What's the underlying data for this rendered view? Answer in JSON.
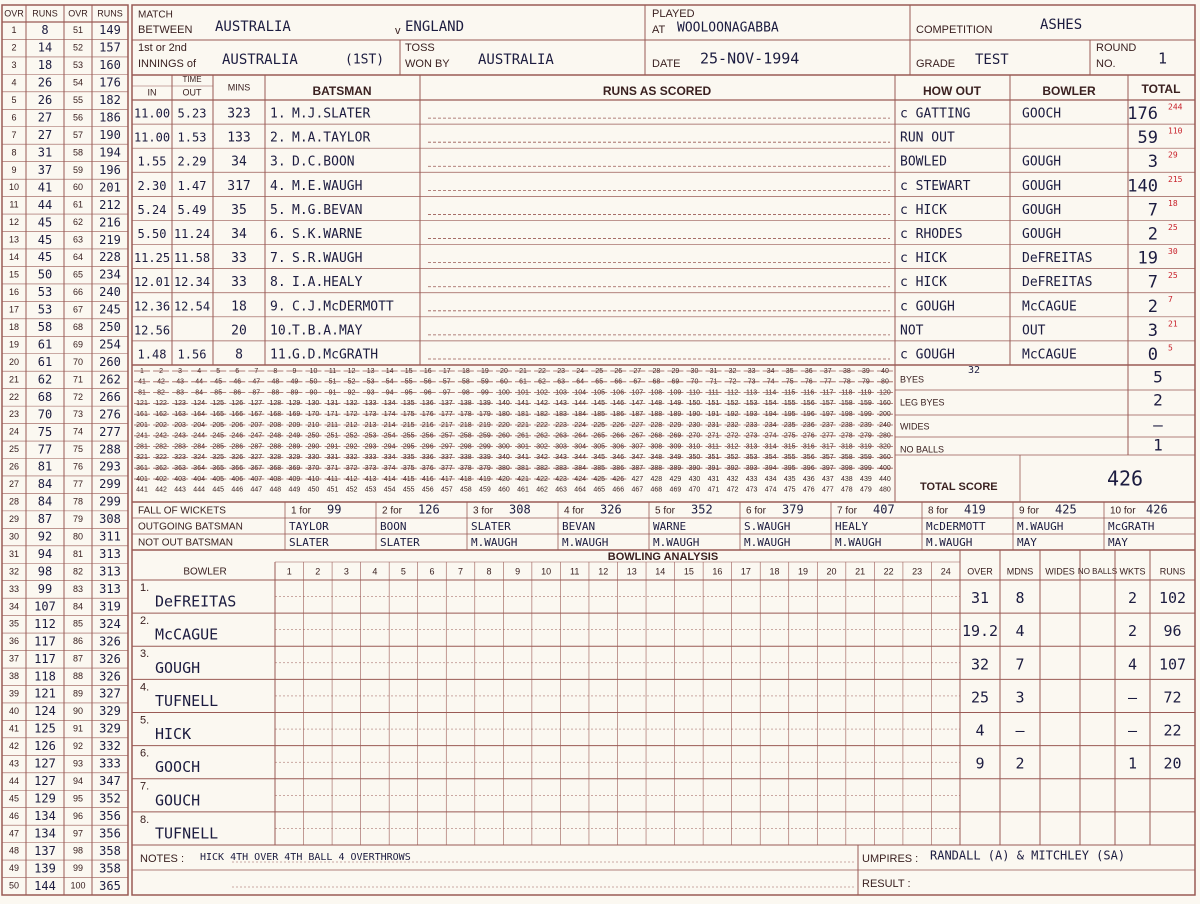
{
  "over_table": {
    "headers": [
      "OVR",
      "RUNS",
      "OVR",
      "RUNS"
    ],
    "rows": [
      [
        "1",
        "8",
        "51",
        "149"
      ],
      [
        "2",
        "14",
        "52",
        "157"
      ],
      [
        "3",
        "18",
        "53",
        "160"
      ],
      [
        "4",
        "26",
        "54",
        "176"
      ],
      [
        "5",
        "26",
        "55",
        "182"
      ],
      [
        "6",
        "27",
        "56",
        "186"
      ],
      [
        "7",
        "27",
        "57",
        "190"
      ],
      [
        "8",
        "31",
        "58",
        "194"
      ],
      [
        "9",
        "37",
        "59",
        "196"
      ],
      [
        "10",
        "41",
        "60",
        "201"
      ],
      [
        "11",
        "44",
        "61",
        "212"
      ],
      [
        "12",
        "45",
        "62",
        "216"
      ],
      [
        "13",
        "45",
        "63",
        "219"
      ],
      [
        "14",
        "45",
        "64",
        "228"
      ],
      [
        "15",
        "50",
        "65",
        "234"
      ],
      [
        "16",
        "53",
        "66",
        "240"
      ],
      [
        "17",
        "53",
        "67",
        "245"
      ],
      [
        "18",
        "58",
        "68",
        "250"
      ],
      [
        "19",
        "61",
        "69",
        "254"
      ],
      [
        "20",
        "61",
        "70",
        "260"
      ],
      [
        "21",
        "62",
        "71",
        "262"
      ],
      [
        "22",
        "68",
        "72",
        "266"
      ],
      [
        "23",
        "70",
        "73",
        "276"
      ],
      [
        "24",
        "75",
        "74",
        "277"
      ],
      [
        "25",
        "77",
        "75",
        "288"
      ],
      [
        "26",
        "81",
        "76",
        "293"
      ],
      [
        "27",
        "84",
        "77",
        "299"
      ],
      [
        "28",
        "84",
        "78",
        "299"
      ],
      [
        "29",
        "87",
        "79",
        "308"
      ],
      [
        "30",
        "92",
        "80",
        "311"
      ],
      [
        "31",
        "94",
        "81",
        "313"
      ],
      [
        "32",
        "98",
        "82",
        "313"
      ],
      [
        "33",
        "99",
        "83",
        "313"
      ],
      [
        "34",
        "107",
        "84",
        "319"
      ],
      [
        "35",
        "112",
        "85",
        "324"
      ],
      [
        "36",
        "117",
        "86",
        "326"
      ],
      [
        "37",
        "117",
        "87",
        "326"
      ],
      [
        "38",
        "118",
        "88",
        "326"
      ],
      [
        "39",
        "121",
        "89",
        "327"
      ],
      [
        "40",
        "124",
        "90",
        "329"
      ],
      [
        "41",
        "125",
        "91",
        "329"
      ],
      [
        "42",
        "126",
        "92",
        "332"
      ],
      [
        "43",
        "127",
        "93",
        "333"
      ],
      [
        "44",
        "127",
        "94",
        "347"
      ],
      [
        "45",
        "129",
        "95",
        "352"
      ],
      [
        "46",
        "134",
        "96",
        "356"
      ],
      [
        "47",
        "134",
        "97",
        "356"
      ],
      [
        "48",
        "137",
        "98",
        "358"
      ],
      [
        "49",
        "139",
        "99",
        "358"
      ],
      [
        "50",
        "144",
        "100",
        "365"
      ]
    ]
  },
  "header": {
    "match_label": [
      "MATCH",
      "BETWEEN"
    ],
    "team1": "AUSTRALIA",
    "v": "v",
    "team2": "ENGLAND",
    "played_label": [
      "PLAYED",
      "AT"
    ],
    "venue": "WOOLOONAGABBA",
    "competition_label": "COMPETITION",
    "competition": "ASHES",
    "innings_label": [
      "1st or 2nd",
      "INNINGS of"
    ],
    "innings": "AUSTRALIA",
    "innings_no": "(1ST)",
    "toss_label": [
      "TOSS",
      "WON BY"
    ],
    "toss": "AUSTRALIA",
    "date_label": "DATE",
    "date": "25-NOV-1994",
    "grade_label": "GRADE",
    "grade": "TEST",
    "round_label": [
      "ROUND",
      "NO."
    ],
    "round": "1"
  },
  "batting": {
    "columns": {
      "time": "TIME",
      "in": "IN",
      "out": "OUT",
      "mins": "MINS",
      "batsman": "BATSMAN",
      "runs_as_scored": "RUNS AS SCORED",
      "how_out": "HOW OUT",
      "bowler": "BOWLER",
      "total": "TOTAL"
    },
    "rows": [
      {
        "in": "11.00",
        "out": "5.23",
        "mins": "323",
        "no": "1.",
        "name": "M.J.SLATER",
        "how_out": "c GATTING",
        "bowler": "GOOCH",
        "total": "176",
        "balls": "244"
      },
      {
        "in": "11.00",
        "out": "1.53",
        "mins": "133",
        "no": "2.",
        "name": "M.A.TAYLOR",
        "how_out": "RUN OUT",
        "total": "59",
        "balls": "110"
      },
      {
        "in": "1.55",
        "out": "2.29",
        "mins": "34",
        "no": "3.",
        "name": "D.C.BOON",
        "how_out": "BOWLED",
        "bowler": "GOUGH",
        "total": "3",
        "balls": "29"
      },
      {
        "in": "2.30",
        "out": "1.47",
        "mins": "317",
        "no": "4.",
        "name": "M.E.WAUGH",
        "how_out": "c STEWART",
        "bowler": "GOUGH",
        "total": "140",
        "balls": "215"
      },
      {
        "in": "5.24",
        "out": "5.49",
        "mins": "35",
        "no": "5.",
        "name": "M.G.BEVAN",
        "how_out": "c HICK",
        "bowler": "GOUGH",
        "total": "7",
        "balls": "18"
      },
      {
        "in": "5.50",
        "out": "11.24",
        "mins": "34",
        "no": "6.",
        "name": "S.K.WARNE",
        "how_out": "c RHODES",
        "bowler": "GOUGH",
        "total": "2",
        "balls": "25"
      },
      {
        "in": "11.25",
        "out": "11.58",
        "mins": "33",
        "no": "7.",
        "name": "S.R.WAUGH",
        "how_out": "c HICK",
        "bowler": "DeFREITAS",
        "total": "19",
        "balls": "30"
      },
      {
        "in": "12.01",
        "out": "12.34",
        "mins": "33",
        "no": "8.",
        "name": "I.A.HEALY",
        "how_out": "c HICK",
        "bowler": "DeFREITAS",
        "total": "7",
        "balls": "25"
      },
      {
        "in": "12.36",
        "out": "12.54",
        "mins": "18",
        "no": "9.",
        "name": "C.J.McDERMOTT",
        "how_out": "c GOUGH",
        "bowler": "McCAGUE",
        "total": "2",
        "balls": "7"
      },
      {
        "in": "12.56",
        "mins": "20",
        "no": "10.",
        "name": "T.B.A.MAY",
        "how_out": "NOT",
        "bowler": "OUT",
        "total": "3",
        "balls": "21"
      },
      {
        "in": "1.48",
        "out": "1.56",
        "mins": "8",
        "no": "11.",
        "name": "G.D.McGRATH",
        "how_out": "c GOUGH",
        "bowler": "McCAGUE",
        "total": "0",
        "balls": "5"
      }
    ]
  },
  "tally": [
    1,
    2,
    3,
    4,
    5,
    6,
    7,
    8,
    9,
    10,
    11,
    12,
    13,
    14,
    15,
    16,
    17,
    18,
    19,
    20,
    21,
    22,
    23,
    24,
    25,
    26,
    27,
    28,
    29,
    30,
    31,
    32,
    33,
    34,
    35,
    36,
    37,
    38,
    39,
    40,
    41,
    42,
    43,
    44,
    45,
    46,
    47,
    48,
    49,
    50,
    51,
    52,
    53,
    54,
    55,
    56,
    57,
    58,
    59,
    60,
    61,
    62,
    63,
    64,
    65,
    66,
    67,
    68,
    69,
    70,
    71,
    72,
    73,
    74,
    75,
    76,
    77,
    78,
    79,
    80,
    81,
    82,
    83,
    84,
    85,
    86,
    87,
    88,
    89,
    90,
    91,
    92,
    93,
    94,
    95,
    96,
    97,
    98,
    99,
    100,
    101,
    102,
    103,
    104,
    105,
    106,
    107,
    108,
    109,
    110,
    111,
    112,
    113,
    114,
    115,
    116,
    117,
    118,
    119,
    120,
    121,
    122,
    123,
    124,
    125,
    126,
    127,
    128,
    129,
    130,
    131,
    132,
    133,
    134,
    135,
    136,
    137,
    138,
    139,
    140,
    141,
    142,
    143,
    144,
    145,
    146,
    147,
    148,
    149,
    150,
    151,
    152,
    153,
    154,
    155,
    156,
    157,
    158,
    159,
    160,
    161,
    162,
    163,
    164,
    165,
    166,
    167,
    168,
    169,
    170,
    171,
    172,
    173,
    174,
    175,
    176,
    177,
    178,
    179,
    180,
    181,
    182,
    183,
    184,
    185,
    186,
    187,
    188,
    189,
    190,
    191,
    192,
    193,
    194,
    195,
    196,
    197,
    198,
    199,
    200,
    201,
    202,
    203,
    204,
    205,
    206,
    207,
    208,
    209,
    210,
    211,
    212,
    213,
    214,
    215,
    216,
    217,
    218,
    219,
    220,
    221,
    222,
    223,
    224,
    225,
    226,
    227,
    228,
    229,
    230,
    231,
    232,
    233,
    234,
    235,
    236,
    237,
    238,
    239,
    240,
    241,
    242,
    243,
    244,
    245,
    246,
    247,
    248,
    249,
    250,
    251,
    252,
    253,
    254,
    255,
    256,
    257,
    258,
    259,
    260,
    261,
    262,
    263,
    264,
    265,
    266,
    267,
    268,
    269,
    270,
    271,
    272,
    273,
    274,
    275,
    276,
    277,
    278,
    279,
    280,
    281,
    282,
    283,
    284,
    285,
    286,
    287,
    288,
    289,
    290,
    291,
    292,
    293,
    294,
    295,
    296,
    297,
    298,
    299,
    300,
    301,
    302,
    303,
    304,
    305,
    306,
    307,
    308,
    309,
    310,
    311,
    312,
    313,
    314,
    315,
    316,
    317,
    318,
    319,
    320,
    321,
    322,
    323,
    324,
    325,
    326,
    327,
    328,
    329,
    330,
    331,
    332,
    333,
    334,
    335,
    336,
    337,
    338,
    339,
    340,
    341,
    342,
    343,
    344,
    345,
    346,
    347,
    348,
    349,
    350,
    351,
    352,
    353,
    354,
    355,
    356,
    357,
    358,
    359,
    360,
    361,
    362,
    363,
    364,
    365,
    366,
    367,
    368,
    369,
    370,
    371,
    372,
    373,
    374,
    375,
    376,
    377,
    378,
    379,
    380,
    381,
    382,
    383,
    384,
    385,
    386,
    387,
    388,
    389,
    390,
    391,
    392,
    393,
    394,
    395,
    396,
    397,
    398,
    399,
    400,
    401,
    402,
    403,
    404,
    405,
    406,
    407,
    408,
    409,
    410,
    411,
    412,
    413,
    414,
    415,
    416,
    417,
    418,
    419,
    420,
    421,
    422,
    423,
    424,
    425,
    426,
    427,
    428,
    429,
    430,
    431,
    432,
    433,
    434,
    435,
    436,
    437,
    438,
    439,
    440,
    441,
    442,
    443,
    444,
    445,
    446,
    447,
    448,
    449,
    450,
    451,
    452,
    453,
    454,
    455,
    456,
    457,
    458,
    459,
    460,
    461,
    462,
    463,
    464,
    465,
    466,
    467,
    468,
    469,
    470,
    471,
    472,
    473,
    474,
    475,
    476,
    477,
    478,
    479,
    480
  ],
  "extras": {
    "byes_label": "BYES",
    "byes_note": "32",
    "byes": "5",
    "leg_byes_label": "LEG BYES",
    "leg_byes": "2",
    "wides_label": "WIDES",
    "wides": "–",
    "no_balls_label": "NO BALLS",
    "no_balls": "1",
    "total_label": "TOTAL SCORE",
    "total": 426
  },
  "fall_of_wickets": {
    "label": "FALL OF WICKETS",
    "outgoing_label": "OUTGOING BATSMAN",
    "not_out_label": "NOT OUT BATSMAN",
    "wickets": [
      {
        "label": "1 for",
        "score": "99",
        "out": "TAYLOR",
        "not_out": "SLATER"
      },
      {
        "label": "2 for",
        "score": "126",
        "out": "BOON",
        "not_out": "SLATER"
      },
      {
        "label": "3 for",
        "score": "308",
        "out": "SLATER",
        "not_out": "M.WAUGH"
      },
      {
        "label": "4 for",
        "score": "326",
        "out": "BEVAN",
        "not_out": "M.WAUGH"
      },
      {
        "label": "5 for",
        "score": "352",
        "out": "WARNE",
        "not_out": "M.WAUGH"
      },
      {
        "label": "6 for",
        "score": "379",
        "out": "S.WAUGH",
        "not_out": "M.WAUGH"
      },
      {
        "label": "7 for",
        "score": "407",
        "out": "HEALY",
        "not_out": "M.WAUGH"
      },
      {
        "label": "8 for",
        "score": "419",
        "out": "McDERMOTT",
        "not_out": "M.WAUGH"
      },
      {
        "label": "9 for",
        "score": "425",
        "out": "M.WAUGH",
        "not_out": "MAY"
      },
      {
        "label": "10 for",
        "score": "426",
        "out": "McGRATH",
        "not_out": "MAY"
      }
    ]
  },
  "bowling": {
    "title": "BOWLING ANALYSIS",
    "columns": {
      "bowler": "BOWLER",
      "overs": [
        "1",
        "2",
        "3",
        "4",
        "5",
        "6",
        "7",
        "8",
        "9",
        "10",
        "11",
        "12",
        "13",
        "14",
        "15",
        "16",
        "17",
        "18",
        "19",
        "20",
        "21",
        "22",
        "23",
        "24"
      ],
      "over": "OVER",
      "mdns": "MDNS",
      "wides": "WIDES",
      "no_balls": "NO BALLS",
      "wkts": "WKTS",
      "runs": "RUNS"
    },
    "rows": [
      {
        "no": "1.",
        "name": "DeFREITAS",
        "over": "31",
        "mdns": "8",
        "wkts": "2",
        "runs": "102"
      },
      {
        "no": "2.",
        "name": "McCAGUE",
        "over": "19.2",
        "mdns": "4",
        "wkts": "2",
        "runs": "96"
      },
      {
        "no": "3.",
        "name": "GOUGH",
        "over": "32",
        "mdns": "7",
        "wkts": "4",
        "runs": "107"
      },
      {
        "no": "4.",
        "name": "TUFNELL",
        "over": "25",
        "mdns": "3",
        "wkts": "–",
        "runs": "72"
      },
      {
        "no": "5.",
        "name": "HICK",
        "over": "4",
        "mdns": "–",
        "wkts": "–",
        "runs": "22"
      },
      {
        "no": "6.",
        "name": "GOOCH",
        "over": "9",
        "mdns": "2",
        "wkts": "1",
        "runs": "20"
      },
      {
        "no": "7.",
        "name": "GOUCH"
      },
      {
        "no": "8.",
        "name": "TUFNELL"
      }
    ]
  },
  "notes": {
    "label": "NOTES :",
    "text": "HICK 4TH OVER 4TH BALL 4 OVERTHROWS"
  },
  "umpires": {
    "label": "UMPIRES :",
    "text": "RANDALL (A) & MITCHLEY (SA)"
  },
  "result": {
    "label": "RESULT :"
  }
}
